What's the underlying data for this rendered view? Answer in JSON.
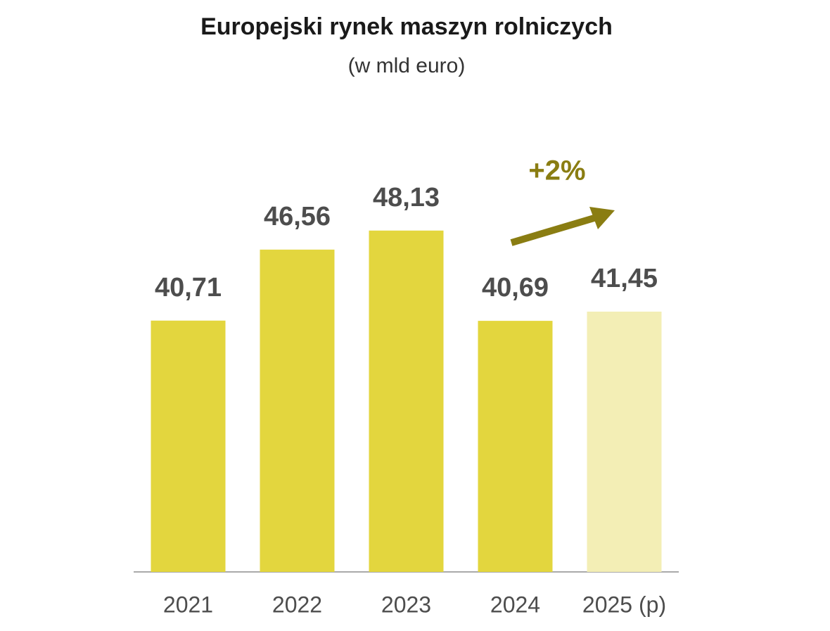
{
  "chart_data": {
    "type": "bar",
    "title": "Europejski rynek maszyn rolniczych",
    "subtitle": "(w mld euro)",
    "categories": [
      "2021",
      "2022",
      "2023",
      "2024",
      "2025 (p)"
    ],
    "values": [
      40.71,
      46.56,
      48.13,
      40.69,
      41.45
    ],
    "value_labels": [
      "40,71",
      "46,56",
      "48,13",
      "40,69",
      "41,45"
    ],
    "colors": [
      "#e3d63e",
      "#e3d63e",
      "#e3d63e",
      "#e3d63e",
      "#f3eeb5"
    ],
    "ylim": [
      20,
      60
    ],
    "annotation": "+2%",
    "annotation_color": "#8a7d12"
  }
}
